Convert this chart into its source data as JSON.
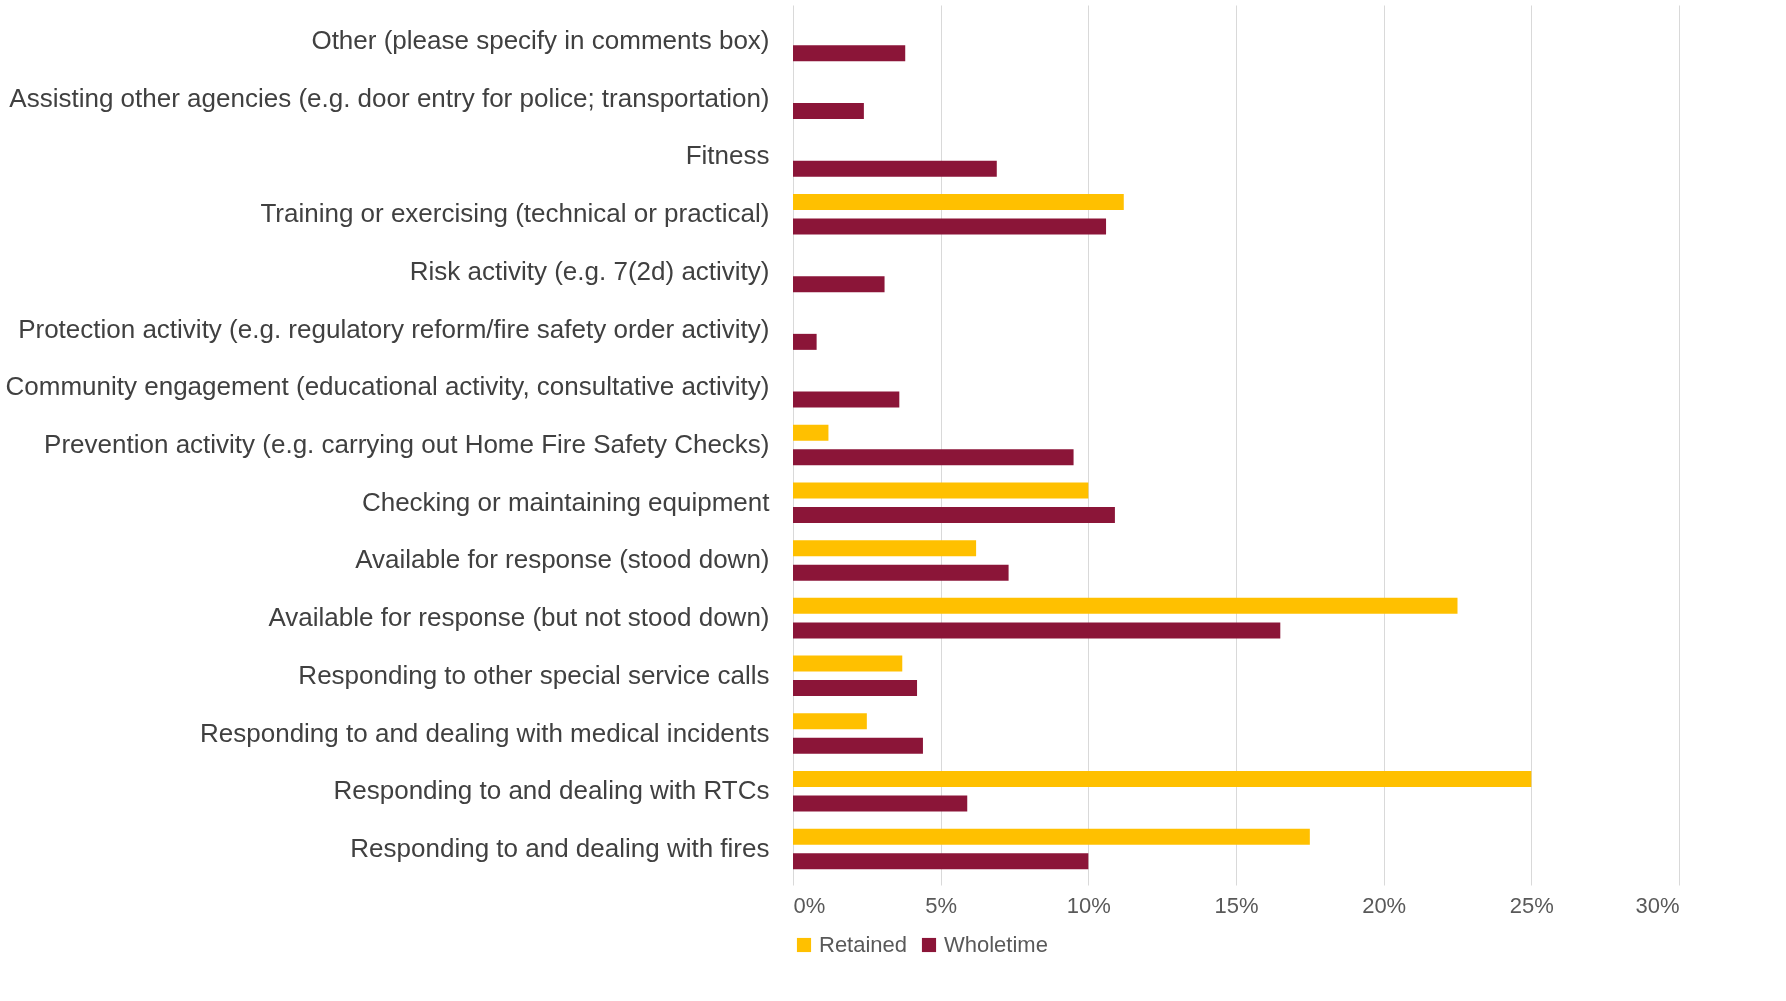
{
  "chart_data": {
    "type": "bar",
    "orientation": "horizontal",
    "categories": [
      "Other (please specify in comments box)",
      "Assisting other agencies (e.g. door entry for police; transportation)",
      "Fitness",
      "Training or exercising (technical or practical)",
      "Risk activity (e.g. 7(2d) activity)",
      "Protection activity (e.g. regulatory reform/fire safety order activity)",
      "Community engagement (educational activity, consultative activity)",
      "Prevention activity (e.g. carrying out Home Fire Safety Checks)",
      "Checking or maintaining equipment",
      "Available for response (stood down)",
      "Available for response (but not stood down)",
      "Responding to other special service calls",
      "Responding to and dealing with medical incidents",
      "Responding to and dealing with RTCs",
      "Responding to and dealing with fires"
    ],
    "series": [
      {
        "name": "Retained",
        "color": "#ffc000",
        "values": [
          null,
          null,
          null,
          11.2,
          null,
          null,
          null,
          1.2,
          10.0,
          6.2,
          22.5,
          3.7,
          2.5,
          25.0,
          17.5
        ]
      },
      {
        "name": "Wholetime",
        "color": "#8b1538",
        "values": [
          3.8,
          2.4,
          6.9,
          10.6,
          3.1,
          0.8,
          3.6,
          9.5,
          10.9,
          7.3,
          16.5,
          4.2,
          4.4,
          5.9,
          10.0
        ]
      }
    ],
    "xlim": [
      0,
      30
    ],
    "xticks": [
      {
        "value": 0,
        "label": "0%"
      },
      {
        "value": 5,
        "label": "5%"
      },
      {
        "value": 10,
        "label": "10%"
      },
      {
        "value": 15,
        "label": "15%"
      },
      {
        "value": 20,
        "label": "20%"
      },
      {
        "value": 25,
        "label": "25%"
      },
      {
        "value": 30,
        "label": "30%"
      }
    ],
    "grid": "x",
    "legend": "bottom"
  }
}
